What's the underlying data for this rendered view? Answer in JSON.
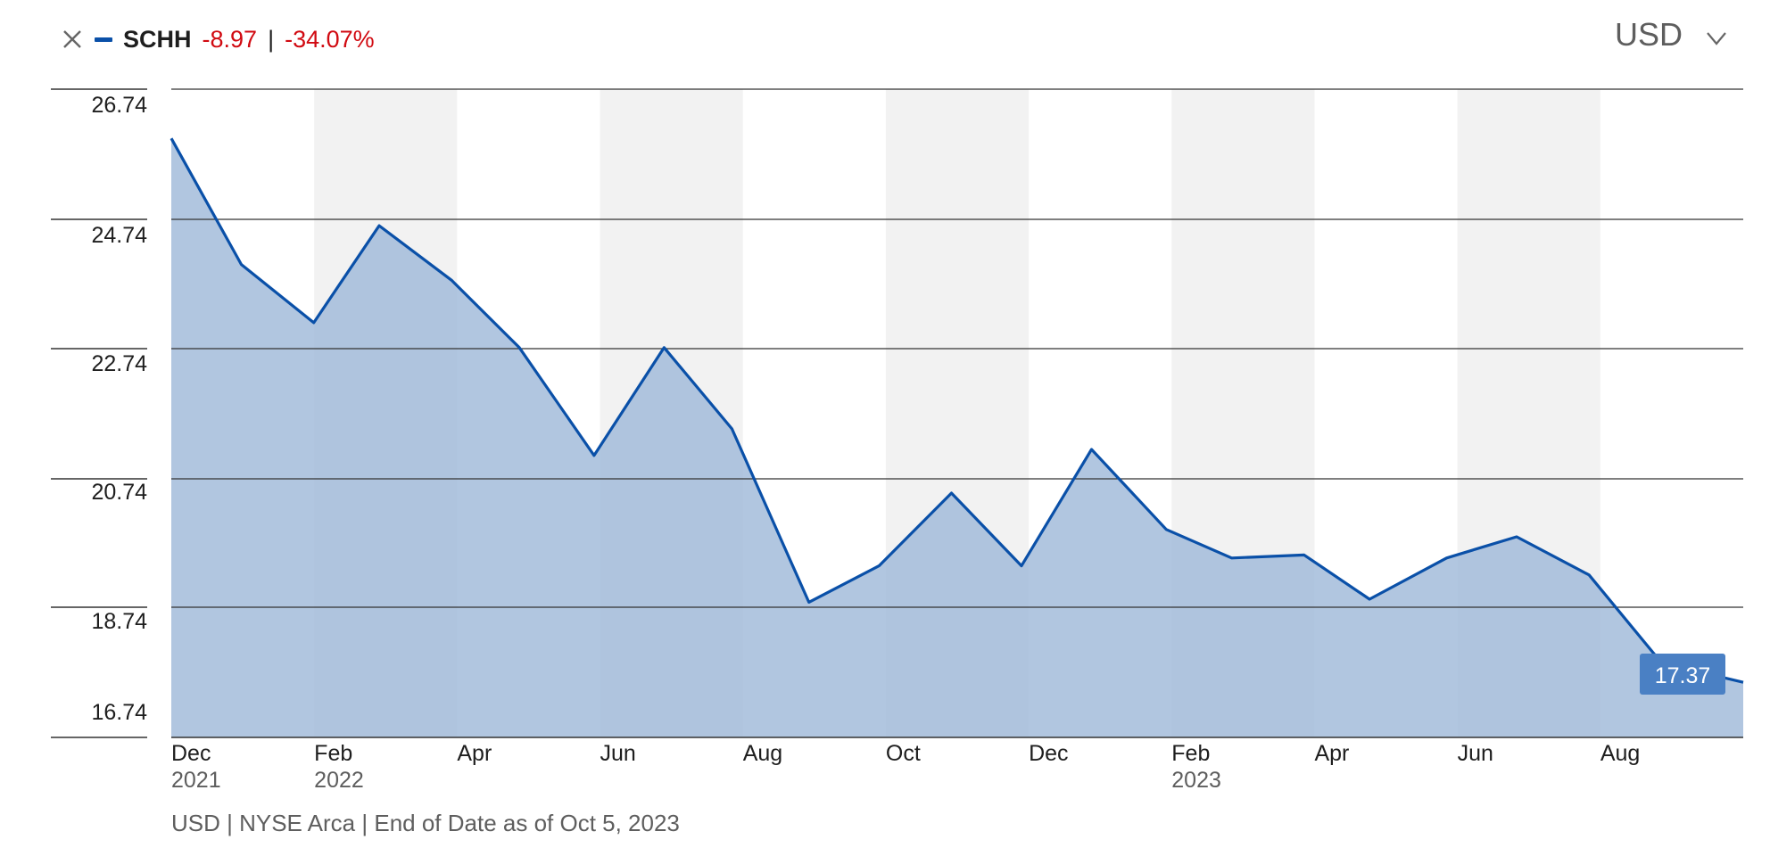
{
  "legend": {
    "ticker": "SCHH",
    "change_abs": "-8.97",
    "separator": "|",
    "change_pct": "-34.07%",
    "close_icon": "close-icon",
    "series_color": "#0a50a8",
    "negative_color": "#d10a11"
  },
  "currency_selector": {
    "label": "USD",
    "icon": "chevron-down-icon"
  },
  "footnote": "USD | NYSE Arca | End of Date as of Oct 5, 2023",
  "chart_data": {
    "type": "area",
    "title": "",
    "xlabel": "",
    "ylabel": "",
    "x_tick_labels": [
      {
        "month": "Dec",
        "year": "2021"
      },
      {
        "month": "Feb",
        "year": "2022"
      },
      {
        "month": "Apr",
        "year": ""
      },
      {
        "month": "Jun",
        "year": ""
      },
      {
        "month": "Aug",
        "year": ""
      },
      {
        "month": "Oct",
        "year": ""
      },
      {
        "month": "Dec",
        "year": ""
      },
      {
        "month": "Feb",
        "year": "2023"
      },
      {
        "month": "Apr",
        "year": ""
      },
      {
        "month": "Jun",
        "year": ""
      },
      {
        "month": "Aug",
        "year": ""
      }
    ],
    "y_ticks": [
      "26.74",
      "24.74",
      "22.74",
      "20.74",
      "18.74",
      "16.74"
    ],
    "ylim": [
      16.74,
      26.74
    ],
    "xlim": [
      "2021-12-01",
      "2023-10-05"
    ],
    "series": [
      {
        "name": "SCHH",
        "points": [
          {
            "x": "2021-12-01",
            "y": 26.34
          },
          {
            "x": "2021-12-31",
            "y": 24.26
          },
          {
            "x": "2022-01-31",
            "y": 23.3
          },
          {
            "x": "2022-02-28",
            "y": 24.9
          },
          {
            "x": "2022-03-31",
            "y": 24.0
          },
          {
            "x": "2022-04-29",
            "y": 22.89
          },
          {
            "x": "2022-05-31",
            "y": 21.11
          },
          {
            "x": "2022-06-30",
            "y": 22.89
          },
          {
            "x": "2022-07-29",
            "y": 21.55
          },
          {
            "x": "2022-08-31",
            "y": 18.69
          },
          {
            "x": "2022-09-30",
            "y": 19.29
          },
          {
            "x": "2022-10-31",
            "y": 20.49
          },
          {
            "x": "2022-11-30",
            "y": 19.29
          },
          {
            "x": "2022-12-30",
            "y": 21.21
          },
          {
            "x": "2023-01-31",
            "y": 19.89
          },
          {
            "x": "2023-02-28",
            "y": 19.42
          },
          {
            "x": "2023-03-31",
            "y": 19.47
          },
          {
            "x": "2023-04-28",
            "y": 18.74
          },
          {
            "x": "2023-05-31",
            "y": 19.42
          },
          {
            "x": "2023-06-30",
            "y": 19.77
          },
          {
            "x": "2023-07-31",
            "y": 19.14
          },
          {
            "x": "2023-08-31",
            "y": 17.69
          },
          {
            "x": "2023-10-05",
            "y": 17.37
          }
        ]
      }
    ],
    "last_value_label": "17.37",
    "grid": true,
    "line_color": "#0a50a8",
    "fill_color": "#a3bcda",
    "band_color": "#f2f2f2",
    "label_box_color": "#4a80c4"
  }
}
